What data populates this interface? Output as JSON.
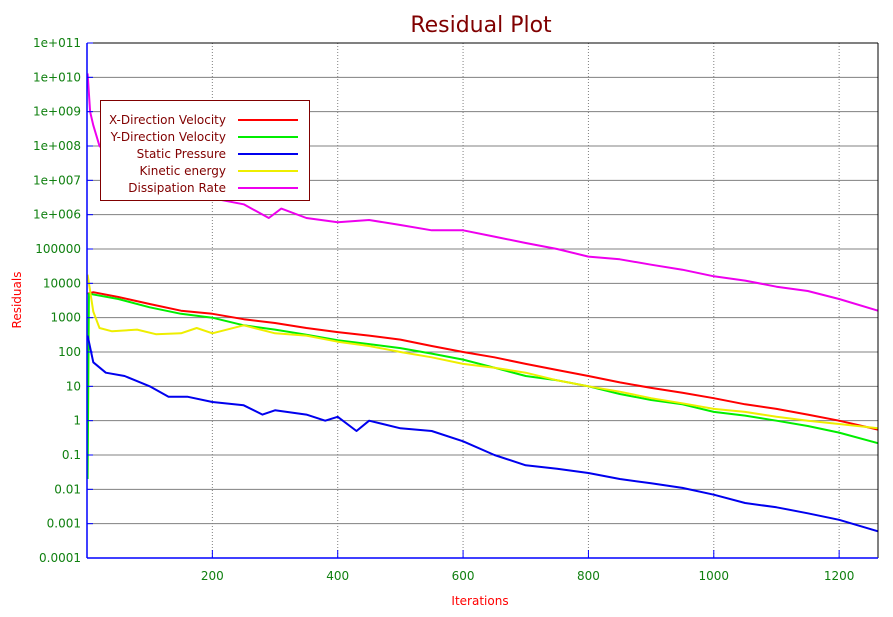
{
  "chart_data": {
    "type": "line",
    "title": "Residual Plot",
    "xlabel": "Iterations",
    "ylabel": "Residuals",
    "xlim": [
      0,
      1262
    ],
    "ylim": [
      0.0001,
      100000000000.0
    ],
    "yscale": "log",
    "grid": true,
    "legend_position": "top-left",
    "x_ticks": [
      200,
      400,
      600,
      800,
      1000,
      1200
    ],
    "x_tick_labels": [
      "200",
      "400",
      "600",
      "800",
      "1000",
      "1200"
    ],
    "y_ticks": [
      100000000000.0,
      10000000000.0,
      1000000000.0,
      100000000.0,
      10000000.0,
      1000000.0,
      100000.0,
      10000.0,
      1000.0,
      100,
      10,
      1,
      0.1,
      0.01,
      0.001,
      0.0001
    ],
    "y_tick_labels": [
      "1e+011",
      "1e+010",
      "1e+009",
      "1e+008",
      "1e+007",
      "1e+006",
      "100000",
      "10000",
      "1000",
      "100",
      "10",
      "1",
      "0.1",
      "0.01",
      "0.001",
      "0.0001"
    ],
    "colors": {
      "title": "#800000",
      "axis_label": "#ff0000",
      "tick": "#108010",
      "legend_border": "#800000"
    },
    "series": [
      {
        "name": "X-Direction Velocity",
        "color": "#ff0000",
        "points": [
          [
            1,
            5000
          ],
          [
            10,
            5500
          ],
          [
            50,
            4000
          ],
          [
            100,
            2500
          ],
          [
            150,
            1600
          ],
          [
            200,
            1300
          ],
          [
            250,
            900
          ],
          [
            300,
            700
          ],
          [
            350,
            500
          ],
          [
            400,
            380
          ],
          [
            450,
            300
          ],
          [
            500,
            230
          ],
          [
            550,
            150
          ],
          [
            600,
            100
          ],
          [
            650,
            70
          ],
          [
            700,
            45
          ],
          [
            750,
            30
          ],
          [
            800,
            20
          ],
          [
            850,
            13
          ],
          [
            900,
            9
          ],
          [
            950,
            6.5
          ],
          [
            1000,
            4.5
          ],
          [
            1050,
            3
          ],
          [
            1100,
            2.2
          ],
          [
            1150,
            1.5
          ],
          [
            1200,
            1
          ],
          [
            1262,
            0.55
          ]
        ]
      },
      {
        "name": "Y-Direction Velocity",
        "color": "#00ee00",
        "points": [
          [
            1,
            0.02
          ],
          [
            3,
            5000
          ],
          [
            50,
            3500
          ],
          [
            100,
            2000
          ],
          [
            150,
            1300
          ],
          [
            200,
            1000
          ],
          [
            250,
            600
          ],
          [
            300,
            450
          ],
          [
            350,
            320
          ],
          [
            400,
            220
          ],
          [
            450,
            170
          ],
          [
            500,
            130
          ],
          [
            550,
            90
          ],
          [
            600,
            60
          ],
          [
            650,
            35
          ],
          [
            700,
            20
          ],
          [
            750,
            15
          ],
          [
            800,
            10
          ],
          [
            850,
            6
          ],
          [
            900,
            4
          ],
          [
            950,
            3
          ],
          [
            1000,
            1.8
          ],
          [
            1050,
            1.4
          ],
          [
            1100,
            1
          ],
          [
            1150,
            0.7
          ],
          [
            1200,
            0.45
          ],
          [
            1262,
            0.22
          ]
        ]
      },
      {
        "name": "Static Pressure",
        "color": "#0000ee",
        "points": [
          [
            1,
            300
          ],
          [
            10,
            50
          ],
          [
            30,
            25
          ],
          [
            60,
            20
          ],
          [
            100,
            10
          ],
          [
            130,
            5
          ],
          [
            160,
            5
          ],
          [
            200,
            3.5
          ],
          [
            250,
            2.8
          ],
          [
            280,
            1.5
          ],
          [
            300,
            2
          ],
          [
            350,
            1.5
          ],
          [
            380,
            1
          ],
          [
            400,
            1.3
          ],
          [
            430,
            0.5
          ],
          [
            450,
            1
          ],
          [
            500,
            0.6
          ],
          [
            550,
            0.5
          ],
          [
            600,
            0.25
          ],
          [
            650,
            0.1
          ],
          [
            700,
            0.05
          ],
          [
            750,
            0.04
          ],
          [
            800,
            0.03
          ],
          [
            850,
            0.02
          ],
          [
            900,
            0.015
          ],
          [
            950,
            0.011
          ],
          [
            1000,
            0.007
          ],
          [
            1050,
            0.004
          ],
          [
            1100,
            0.003
          ],
          [
            1150,
            0.002
          ],
          [
            1200,
            0.0013
          ],
          [
            1262,
            0.0006
          ]
        ]
      },
      {
        "name": "Kinetic energy",
        "color": "#eeee00",
        "points": [
          [
            1,
            18000
          ],
          [
            10,
            1500
          ],
          [
            20,
            500
          ],
          [
            40,
            400
          ],
          [
            80,
            450
          ],
          [
            110,
            330
          ],
          [
            150,
            350
          ],
          [
            175,
            500
          ],
          [
            200,
            350
          ],
          [
            250,
            600
          ],
          [
            300,
            350
          ],
          [
            350,
            300
          ],
          [
            400,
            200
          ],
          [
            450,
            150
          ],
          [
            500,
            100
          ],
          [
            550,
            70
          ],
          [
            600,
            45
          ],
          [
            650,
            35
          ],
          [
            700,
            25
          ],
          [
            750,
            15
          ],
          [
            800,
            10
          ],
          [
            850,
            7
          ],
          [
            900,
            4.5
          ],
          [
            950,
            3.2
          ],
          [
            1000,
            2.2
          ],
          [
            1050,
            1.8
          ],
          [
            1100,
            1.3
          ],
          [
            1150,
            1
          ],
          [
            1200,
            0.8
          ],
          [
            1262,
            0.6
          ]
        ]
      },
      {
        "name": "Dissipation Rate",
        "color": "#ee00ee",
        "points": [
          [
            1,
            13000000000.0
          ],
          [
            5,
            1000000000.0
          ],
          [
            10,
            400000000.0
          ],
          [
            20,
            100000000.0
          ],
          [
            50,
            30000000.0
          ],
          [
            100,
            10000000.0
          ],
          [
            200,
            3000000.0
          ],
          [
            250,
            2000000.0
          ],
          [
            290,
            800000.0
          ],
          [
            310,
            1500000.0
          ],
          [
            350,
            800000.0
          ],
          [
            400,
            600000.0
          ],
          [
            450,
            700000.0
          ],
          [
            500,
            500000.0
          ],
          [
            550,
            350000.0
          ],
          [
            600,
            350000.0
          ],
          [
            650,
            230000.0
          ],
          [
            700,
            150000.0
          ],
          [
            750,
            100000.0
          ],
          [
            800,
            60000.0
          ],
          [
            850,
            50000.0
          ],
          [
            900,
            35000.0
          ],
          [
            950,
            25000.0
          ],
          [
            1000,
            16000.0
          ],
          [
            1050,
            12000.0
          ],
          [
            1100,
            8000.0
          ],
          [
            1150,
            6000.0
          ],
          [
            1200,
            3500.0
          ],
          [
            1262,
            1600.0
          ]
        ]
      }
    ]
  }
}
